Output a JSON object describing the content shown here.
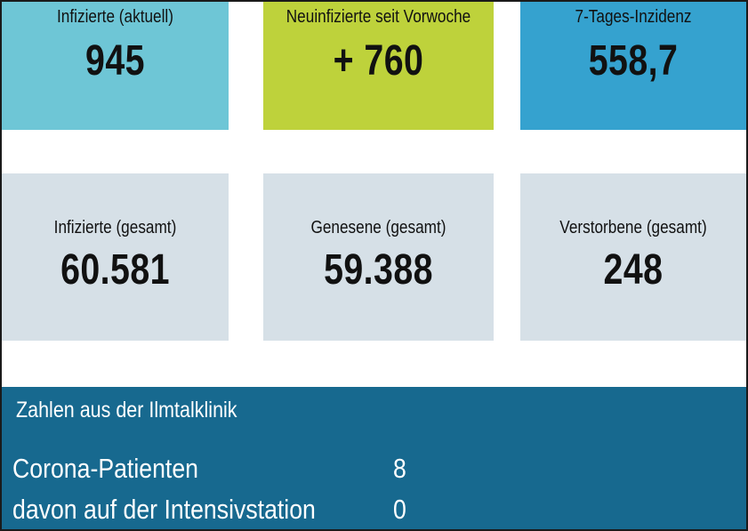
{
  "tiles": [
    {
      "label": "Infizierte (aktuell)",
      "value": "945"
    },
    {
      "label": "Neuinfizierte seit Vorwoche",
      "value": "+ 760"
    },
    {
      "label": "7-Tages-Inzidenz",
      "value": "558,7"
    },
    {
      "label": "Infizierte (gesamt)",
      "value": "60.581"
    },
    {
      "label": "Genesene (gesamt)",
      "value": "59.388"
    },
    {
      "label": "Verstorbene (gesamt)",
      "value": "248"
    }
  ],
  "clinic": {
    "title": "Zahlen aus der Ilmtalklinik",
    "rows": [
      {
        "label": "Corona-Patienten",
        "value": "8"
      },
      {
        "label": "davon auf der Intensivstation",
        "value": "0"
      }
    ]
  },
  "colors": {
    "tile_current": "#6ec6d6",
    "tile_new": "#bed23b",
    "tile_incidence": "#35a2cf",
    "tile_totals": "#d6e0e7",
    "clinic_panel": "#17698f"
  }
}
